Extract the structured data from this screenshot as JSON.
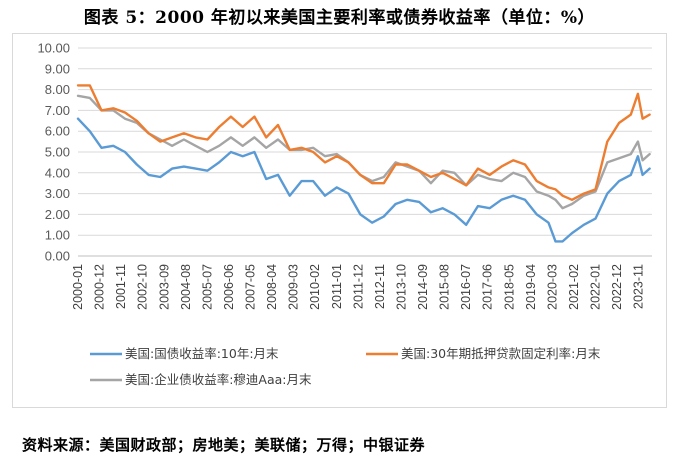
{
  "title": "图表 5：2000 年初以来美国主要利率或债券收益率（单位：%）",
  "source": "资料来源：美国财政部；房地美；美联储；万得；中银证券",
  "chart_data": {
    "type": "line",
    "ylim": [
      0,
      10
    ],
    "yticks": [
      "0.00",
      "1.00",
      "2.00",
      "3.00",
      "4.00",
      "5.00",
      "6.00",
      "7.00",
      "8.00",
      "9.00",
      "10.00"
    ],
    "xtick_labels": [
      "2000-01",
      "2000-12",
      "2001-11",
      "2002-10",
      "2003-09",
      "2004-08",
      "2005-07",
      "2006-06",
      "2007-05",
      "2008-04",
      "2009-03",
      "2010-02",
      "2011-01",
      "2011-12",
      "2012-11",
      "2013-10",
      "2014-09",
      "2015-08",
      "2016-07",
      "2017-06",
      "2018-05",
      "2019-04",
      "2020-03",
      "2021-02",
      "2022-01",
      "2022-12",
      "2023-11"
    ],
    "legend_position": "bottom",
    "series": [
      {
        "name": "美国:国债收益率:10年:月末",
        "color": "#5b9bd5",
        "x": [
          2000.0,
          2000.5,
          2001.0,
          2001.5,
          2002.0,
          2002.5,
          2003.0,
          2003.5,
          2004.0,
          2004.5,
          2005.0,
          2005.5,
          2006.0,
          2006.5,
          2007.0,
          2007.5,
          2008.0,
          2008.5,
          2009.0,
          2009.5,
          2010.0,
          2010.5,
          2011.0,
          2011.5,
          2012.0,
          2012.5,
          2013.0,
          2013.5,
          2014.0,
          2014.5,
          2015.0,
          2015.5,
          2016.0,
          2016.5,
          2017.0,
          2017.5,
          2018.0,
          2018.5,
          2019.0,
          2019.5,
          2020.0,
          2020.3,
          2020.6,
          2021.0,
          2021.5,
          2022.0,
          2022.5,
          2023.0,
          2023.5,
          2023.8,
          2024.0,
          2024.3
        ],
        "y": [
          6.6,
          6.0,
          5.2,
          5.3,
          5.0,
          4.4,
          3.9,
          3.8,
          4.2,
          4.3,
          4.2,
          4.1,
          4.5,
          5.0,
          4.8,
          5.0,
          3.7,
          3.9,
          2.9,
          3.6,
          3.6,
          2.9,
          3.3,
          3.0,
          2.0,
          1.6,
          1.9,
          2.5,
          2.7,
          2.6,
          2.1,
          2.3,
          2.0,
          1.5,
          2.4,
          2.3,
          2.7,
          2.9,
          2.7,
          2.0,
          1.6,
          0.7,
          0.7,
          1.1,
          1.5,
          1.8,
          3.0,
          3.6,
          3.9,
          4.8,
          3.9,
          4.2
        ]
      },
      {
        "name": "美国:30年期抵押贷款固定利率:月末",
        "color": "#ed7d31",
        "x": [
          2000.0,
          2000.5,
          2001.0,
          2001.5,
          2002.0,
          2002.5,
          2003.0,
          2003.5,
          2004.0,
          2004.5,
          2005.0,
          2005.5,
          2006.0,
          2006.5,
          2007.0,
          2007.5,
          2008.0,
          2008.5,
          2009.0,
          2009.5,
          2010.0,
          2010.5,
          2011.0,
          2011.5,
          2012.0,
          2012.5,
          2013.0,
          2013.5,
          2014.0,
          2014.5,
          2015.0,
          2015.5,
          2016.0,
          2016.5,
          2017.0,
          2017.5,
          2018.0,
          2018.5,
          2019.0,
          2019.5,
          2020.0,
          2020.3,
          2020.6,
          2021.0,
          2021.5,
          2022.0,
          2022.5,
          2023.0,
          2023.5,
          2023.8,
          2024.0,
          2024.3
        ],
        "y": [
          8.2,
          8.2,
          7.0,
          7.1,
          6.9,
          6.5,
          5.9,
          5.5,
          5.7,
          5.9,
          5.7,
          5.6,
          6.2,
          6.7,
          6.2,
          6.7,
          5.7,
          6.3,
          5.1,
          5.2,
          5.0,
          4.5,
          4.8,
          4.5,
          3.9,
          3.5,
          3.5,
          4.4,
          4.4,
          4.1,
          3.8,
          4.0,
          3.7,
          3.4,
          4.2,
          3.9,
          4.3,
          4.6,
          4.4,
          3.6,
          3.3,
          3.2,
          2.9,
          2.7,
          3.0,
          3.2,
          5.5,
          6.4,
          6.8,
          7.8,
          6.6,
          6.8
        ]
      },
      {
        "name": "美国:企业债收益率:穆迪Aaa:月末",
        "color": "#a5a5a5",
        "x": [
          2000.0,
          2000.5,
          2001.0,
          2001.5,
          2002.0,
          2002.5,
          2003.0,
          2003.5,
          2004.0,
          2004.5,
          2005.0,
          2005.5,
          2006.0,
          2006.5,
          2007.0,
          2007.5,
          2008.0,
          2008.5,
          2009.0,
          2009.5,
          2010.0,
          2010.5,
          2011.0,
          2011.5,
          2012.0,
          2012.5,
          2013.0,
          2013.5,
          2014.0,
          2014.5,
          2015.0,
          2015.5,
          2016.0,
          2016.5,
          2017.0,
          2017.5,
          2018.0,
          2018.5,
          2019.0,
          2019.5,
          2020.0,
          2020.3,
          2020.6,
          2021.0,
          2021.5,
          2022.0,
          2022.5,
          2023.0,
          2023.5,
          2023.8,
          2024.0,
          2024.3
        ],
        "y": [
          7.7,
          7.6,
          7.0,
          7.0,
          6.6,
          6.4,
          5.9,
          5.6,
          5.3,
          5.6,
          5.3,
          5.0,
          5.3,
          5.7,
          5.3,
          5.7,
          5.2,
          5.6,
          5.1,
          5.1,
          5.2,
          4.8,
          4.9,
          4.5,
          3.9,
          3.6,
          3.8,
          4.5,
          4.3,
          4.1,
          3.5,
          4.1,
          4.0,
          3.4,
          3.9,
          3.7,
          3.6,
          4.0,
          3.8,
          3.1,
          2.9,
          2.7,
          2.3,
          2.5,
          2.9,
          3.1,
          4.5,
          4.7,
          4.9,
          5.5,
          4.6,
          4.9
        ]
      }
    ]
  }
}
